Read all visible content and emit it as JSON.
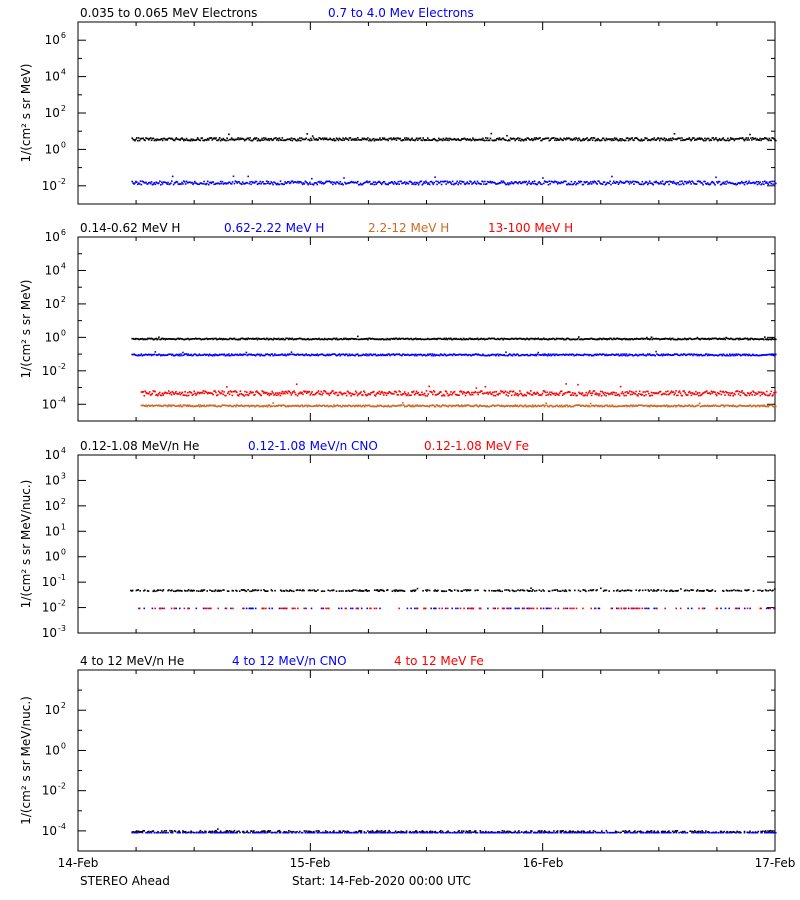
{
  "colors": {
    "black": "#000000",
    "blue": "#0000ff",
    "orange": "#d2691e",
    "red": "#ff0000"
  },
  "footer": {
    "spacecraft": "STEREO Ahead",
    "start": "Start: 14-Feb-2020 00:00 UTC"
  },
  "x_axis": {
    "ticks": [
      "14-Feb",
      "15-Feb",
      "16-Feb",
      "17-Feb"
    ],
    "range_days": [
      0,
      3
    ]
  },
  "chart_data": [
    {
      "type": "scatter",
      "ylabel": "1/(cm² s sr MeV)",
      "yscale": "log",
      "ylim_exp": [
        -3,
        7
      ],
      "tick_exps": [
        -2,
        0,
        2,
        4,
        6
      ],
      "legend": [
        {
          "text": "0.035 to 0.065 MeV Electrons",
          "color": "black"
        },
        {
          "text": "0.7 to 4.0 Mev Electrons",
          "color": "blue"
        }
      ],
      "series": [
        {
          "name": "0.035 to 0.065 MeV Electrons",
          "color": "black",
          "x_range_days": [
            0.23,
            3.0
          ],
          "level_log10": 0.6,
          "scatter": 0.08
        },
        {
          "name": "0.7 to 4.0 Mev Electrons",
          "color": "blue",
          "x_range_days": [
            0.23,
            3.0
          ],
          "level_log10": -1.8,
          "scatter": 0.1
        }
      ]
    },
    {
      "type": "scatter",
      "ylabel": "1/(cm² s sr MeV)",
      "yscale": "log",
      "ylim_exp": [
        -5,
        6
      ],
      "tick_exps": [
        -4,
        -2,
        0,
        2,
        4,
        6
      ],
      "legend": [
        {
          "text": "0.14-0.62 MeV H",
          "color": "black"
        },
        {
          "text": "0.62-2.22 MeV H",
          "color": "blue"
        },
        {
          "text": "2.2-12 MeV H",
          "color": "orange"
        },
        {
          "text": "13-100 MeV H",
          "color": "red"
        }
      ],
      "series": [
        {
          "name": "0.14-0.62 MeV H",
          "color": "black",
          "x_range_days": [
            0.23,
            3.0
          ],
          "level_log10": -0.05,
          "scatter": 0.04
        },
        {
          "name": "0.62-2.22 MeV H",
          "color": "blue",
          "x_range_days": [
            0.23,
            3.0
          ],
          "level_log10": -1.0,
          "scatter": 0.05
        },
        {
          "name": "2.2-12 MeV H",
          "color": "orange",
          "x_range_days": [
            0.27,
            3.0
          ],
          "level_log10": -4.05,
          "scatter": 0.05
        },
        {
          "name": "13-100 MeV H",
          "color": "red",
          "x_range_days": [
            0.27,
            3.0
          ],
          "level_log10": -3.3,
          "scatter": 0.15
        }
      ]
    },
    {
      "type": "scatter",
      "ylabel": "1/(cm² s sr MeV/nuc.)",
      "yscale": "log",
      "ylim_exp": [
        -3,
        4
      ],
      "tick_exps": [
        -3,
        -2,
        -1,
        0,
        1,
        2,
        3,
        4
      ],
      "legend": [
        {
          "text": "0.12-1.08 MeV/n He",
          "color": "black"
        },
        {
          "text": "0.12-1.08 MeV/n CNO",
          "color": "blue"
        },
        {
          "text": "0.12-1.08 MeV Fe",
          "color": "red"
        }
      ],
      "series": [
        {
          "name": "0.12-1.08 MeV/n He",
          "color": "black",
          "x_range_days": [
            0.2,
            3.0
          ],
          "level_log10": -1.3,
          "scatter": 0.03,
          "sparse": 0.55
        },
        {
          "name": "0.12-1.08 MeV/n CNO",
          "color": "blue",
          "x_range_days": [
            0.25,
            3.0
          ],
          "level_log10": -2.0,
          "scatter": 0.0,
          "sparse": 0.15
        },
        {
          "name": "0.12-1.08 MeV Fe",
          "color": "red",
          "x_range_days": [
            0.25,
            3.0
          ],
          "level_log10": -2.0,
          "scatter": 0.0,
          "sparse": 0.15
        }
      ]
    },
    {
      "type": "scatter",
      "ylabel": "1/(cm² s sr MeV/nuc.)",
      "yscale": "log",
      "ylim_exp": [
        -5,
        4
      ],
      "tick_exps": [
        -4,
        -2,
        0,
        2
      ],
      "legend": [
        {
          "text": "4 to 12 MeV/n He",
          "color": "black"
        },
        {
          "text": "4 to 12 MeV/n CNO",
          "color": "blue"
        },
        {
          "text": "4 to 12 MeV Fe",
          "color": "red"
        }
      ],
      "series": [
        {
          "name": "4 to 12 MeV/n He",
          "color": "black",
          "x_range_days": [
            0.23,
            3.0
          ],
          "level_log10": -4.0,
          "scatter": 0.05,
          "sparse": 0.5
        },
        {
          "name": "4 to 12 MeV/n CNO",
          "color": "blue",
          "x_range_days": [
            0.23,
            3.0
          ],
          "level_log10": -4.05,
          "scatter": 0.0,
          "sparse": 0.6
        },
        {
          "name": "4 to 12 MeV Fe",
          "color": "red",
          "x_range_days": [
            0.23,
            3.0
          ],
          "level_log10": -5.0,
          "scatter": 0.0,
          "sparse": 0.0
        }
      ]
    }
  ]
}
